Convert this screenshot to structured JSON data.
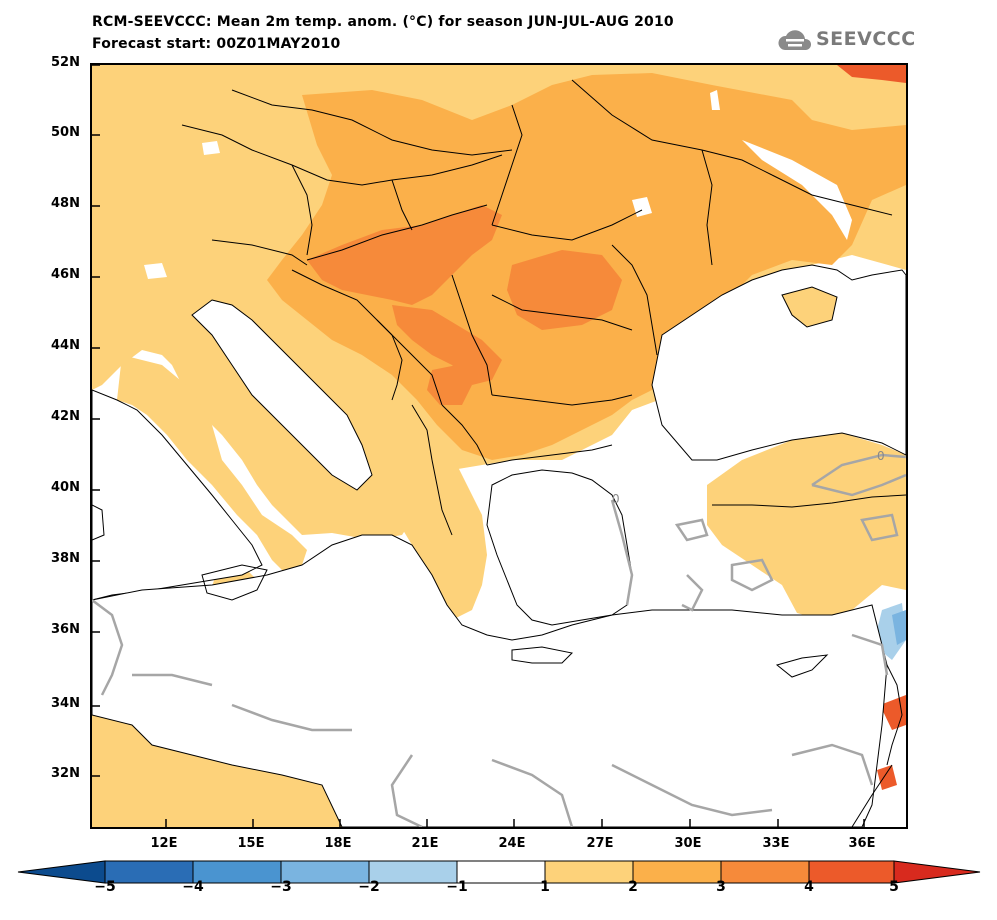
{
  "title_line1": "RCM-SEEVCCC: Mean 2m temp. anom. (°C) for season JUN-JUL-AUG 2010",
  "title_line2": "Forecast start: 00Z01MAY2010",
  "logo": {
    "text": "SEEVCCC",
    "icon": "cloud-logo-icon"
  },
  "map": {
    "lat_ticks": [
      "52N",
      "50N",
      "48N",
      "46N",
      "44N",
      "42N",
      "40N",
      "38N",
      "36N",
      "34N",
      "32N"
    ],
    "lon_ticks": [
      "12E",
      "15E",
      "18E",
      "21E",
      "24E",
      "27E",
      "30E",
      "33E",
      "36E"
    ],
    "contour_labels": [
      "0",
      "0"
    ]
  },
  "colorbar": {
    "labels": [
      "−5",
      "−4",
      "−3",
      "−2",
      "−1",
      "1",
      "2",
      "3",
      "4",
      "5"
    ],
    "colors": [
      "#0c4b8e",
      "#2a6db5",
      "#4a94d0",
      "#7ab4e0",
      "#a9d0ea",
      "#ffffff",
      "#fdd27a",
      "#fbb04a",
      "#f68a3a",
      "#ec5a2a",
      "#d82a1e"
    ]
  }
}
